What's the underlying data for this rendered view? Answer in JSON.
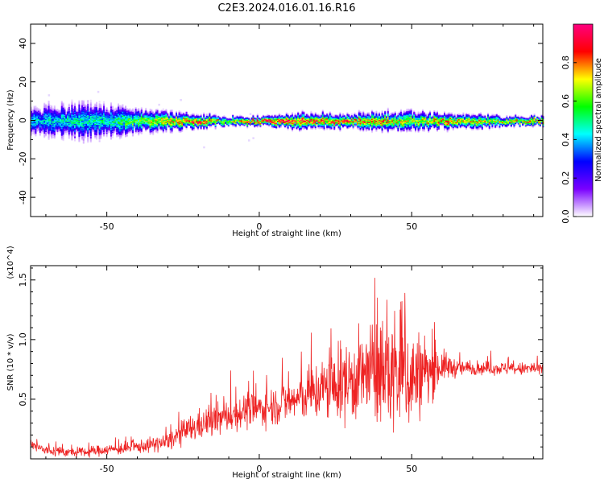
{
  "title": "C2E3.2024.016.01.16.R16",
  "chart_data": [
    {
      "type": "heatmap",
      "xlabel": "Height of straight line (km)",
      "ylabel": "Frequency (Hz)",
      "xlim": [
        -75,
        93
      ],
      "ylim": [
        -50,
        50
      ],
      "xticks": [
        -50,
        0,
        50
      ],
      "yticks": [
        -40,
        -20,
        0,
        20,
        40
      ],
      "grid": false,
      "colorbar": {
        "label": "Normalized spectral amplitude",
        "range": [
          0,
          1
        ],
        "ticks": [
          "0.0",
          "0.2",
          "0.4",
          "0.6",
          "0.8"
        ],
        "colors": [
          "#ffffff",
          "#7a00ff",
          "#0000ff",
          "#00ffff",
          "#00ff00",
          "#ffff00",
          "#ff0000",
          "#ff0080"
        ]
      },
      "band_profile": {
        "x": [
          -75,
          -60,
          -50,
          -40,
          -30,
          -20,
          -10,
          0,
          10,
          20,
          30,
          40,
          50,
          60,
          70,
          80,
          93
        ],
        "half_width_hz": [
          6,
          8,
          7,
          5,
          4,
          3,
          2,
          2,
          3,
          3,
          3,
          4,
          4,
          3,
          3,
          2,
          2
        ],
        "peak_amplitude": [
          0.45,
          0.5,
          0.5,
          0.65,
          0.8,
          0.9,
          0.7,
          0.95,
          0.95,
          0.9,
          0.85,
          0.85,
          0.7,
          0.85,
          0.8,
          0.75,
          0.9
        ]
      }
    },
    {
      "type": "line",
      "xlabel": "Height of straight line (km)",
      "ylabel": "SNR (10 * v/v)",
      "y_multiplier": "(x10^4)",
      "color": "#ee2222",
      "xlim": [
        -75,
        93
      ],
      "ylim": [
        0,
        1.62
      ],
      "xticks": [
        -50,
        0,
        50
      ],
      "yticks": [
        0.5,
        1.0,
        1.5
      ],
      "grid": false,
      "series": [
        {
          "x": [
            -75,
            -70,
            -65,
            -60,
            -55,
            -50,
            -45,
            -40,
            -35,
            -30,
            -25,
            -20,
            -15,
            -10,
            -5,
            0,
            5,
            10,
            15,
            20,
            25,
            30,
            35,
            40,
            45,
            50,
            55,
            60,
            65,
            70,
            75,
            80,
            85,
            90,
            93
          ],
          "y": [
            0.12,
            0.07,
            0.06,
            0.05,
            0.06,
            0.08,
            0.08,
            0.1,
            0.12,
            0.14,
            0.22,
            0.28,
            0.32,
            0.36,
            0.4,
            0.42,
            0.45,
            0.48,
            0.52,
            0.58,
            0.6,
            0.66,
            0.7,
            0.72,
            0.72,
            0.68,
            0.72,
            0.78,
            0.76,
            0.76,
            0.76,
            0.76,
            0.75,
            0.76,
            0.74
          ],
          "spread": [
            0.06,
            0.05,
            0.05,
            0.04,
            0.05,
            0.05,
            0.05,
            0.06,
            0.07,
            0.08,
            0.12,
            0.14,
            0.15,
            0.15,
            0.16,
            0.16,
            0.18,
            0.2,
            0.22,
            0.3,
            0.32,
            0.4,
            0.42,
            0.5,
            0.6,
            0.5,
            0.3,
            0.15,
            0.08,
            0.06,
            0.06,
            0.06,
            0.06,
            0.07,
            0.06
          ]
        }
      ]
    }
  ]
}
